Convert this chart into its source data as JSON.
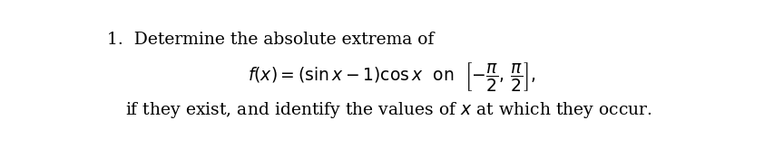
{
  "bg_color": "#ffffff",
  "text_color": "#000000",
  "fontsize_main": 13.5,
  "fig_width": 8.42,
  "fig_height": 1.64
}
